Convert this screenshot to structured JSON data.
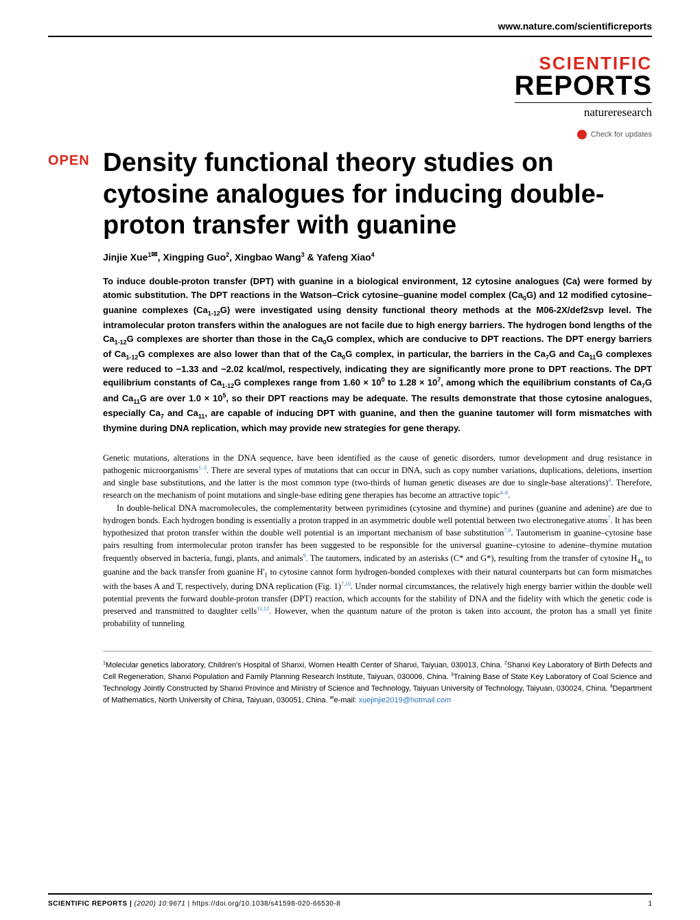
{
  "header": {
    "url": "www.nature.com/scientificreports",
    "logo_top": "SCIENTIFIC",
    "logo_bottom": "REPORTS",
    "logo_sub": "natureresearch",
    "check_updates": "Check for updates",
    "open_badge": "OPEN"
  },
  "colors": {
    "brand_red": "#d9281c",
    "link_blue": "#2a6fb5",
    "text": "#000000",
    "background": "#ffffff",
    "rule": "#000000"
  },
  "typography": {
    "title_fontsize_pt": 28,
    "authors_fontsize_pt": 10.5,
    "abstract_fontsize_pt": 10,
    "body_fontsize_pt": 9.5,
    "affil_fontsize_pt": 8.5,
    "title_family": "Arial",
    "body_family": "Georgia"
  },
  "title": "Density functional theory studies on cytosine analogues for inducing double-proton transfer with guanine",
  "authors_html": "Jinjie Xue<sup>1</sup><span class='envelope'>✉</span>, Xingping Guo<sup>2</sup>, Xingbao Wang<sup>3</sup> & Yafeng Xiao<sup>4</sup>",
  "abstract_html": "To induce double-proton transfer (DPT) with guanine in a biological environment, 12 cytosine analogues (Ca) were formed by atomic substitution. The DPT reactions in the Watson–Crick cytosine–guanine model complex (Ca<sub>0</sub>G) and 12 modified cytosine–guanine complexes (Ca<sub>1-12</sub>G) were investigated using density functional theory methods at the M06-2X/def2svp level. The intramolecular proton transfers within the analogues are not facile due to high energy barriers. The hydrogen bond lengths of the Ca<sub>1-12</sub>G complexes are shorter than those in the Ca<sub>0</sub>G complex, which are conducive to DPT reactions. The DPT energy barriers of Ca<sub>1-12</sub>G complexes are also lower than that of the Ca<sub>0</sub>G complex, in particular, the barriers in the Ca<sub>7</sub>G and Ca<sub>11</sub>G complexes were reduced to −1.33 and −2.02 kcal/mol, respectively, indicating they are significantly more prone to DPT reactions. The DPT equilibrium constants of Ca<sub>1-12</sub>G complexes range from 1.60 × 10<sup>0</sup> to 1.28 × 10<sup>7</sup>, among which the equilibrium constants of Ca<sub>7</sub>G and Ca<sub>11</sub>G are over 1.0 × 10<sup>5</sup>, so their DPT reactions may be adequate. The results demonstrate that those cytosine analogues, especially Ca<sub>7</sub> and Ca<sub>11</sub>, are capable of inducing DPT with guanine, and then the guanine tautomer will form mismatches with thymine during DNA replication, which may provide new strategies for gene therapy.",
  "body_paragraphs": [
    "Genetic mutations, alterations in the DNA sequence, have been identified as the cause of genetic disorders, tumor development and drug resistance in pathogenic microorganisms<sup>1–3</sup>. There are several types of mutations that can occur in DNA, such as copy number variations, duplications, deletions, insertion and single base substitutions, and the latter is the most common type (two-thirds of human genetic diseases are due to single-base alterations)<sup>4</sup>. Therefore, research on the mechanism of point mutations and single-base editing gene therapies has become an attractive topic<sup>4–6</sup>.",
    "In double-helical DNA macromolecules, the complementarity between pyrimidines (cytosine and thymine) and purines (guanine and adenine) are due to hydrogen bonds. Each hydrogen bonding is essentially a proton trapped in an asymmetric double well potential between two electronegative atoms<sup>7</sup>. It has been hypothesized that proton transfer within the double well potential is an important mechanism of base substitution<sup>7,8</sup>. Tautomerism in guanine–cytosine base pairs resulting from intermolecular proton transfer has been suggested to be responsible for the universal guanine–cytosine to adenine–thymine mutation frequently observed in bacteria, fungi, plants, and animals<sup>9</sup>. The tautomers, indicated by an asterisks (C* and G*), resulting from the transfer of cytosine H<sub>4a</sub> to guanine and the back transfer from guanine H'<sub>1</sub> to cytosine cannot form hydrogen-bonded complexes with their natural counterparts but can form mismatches with the bases A and T, respectively, during DNA replication (Fig. 1)<sup>7,10</sup>. Under normal circumstances, the relatively high energy barrier within the double well potential prevents the forward double-proton transfer (DPT) reaction, which accounts for the stability of DNA and the fidelity with which the genetic code is preserved and transmitted to daughter cells<sup>11,12</sup>. However, when the quantum nature of the proton is taken into account, the proton has a small yet finite probability of tunneling"
  ],
  "affiliations_html": "<sup>1</sup>Molecular genetics laboratory, Children's Hospital of Shanxi, Women Health Center of Shanxi, Taiyuan, 030013, China. <sup>2</sup>Shanxi Key Laboratory of Birth Defects and Cell Regeneration, Shanxi Population and Family Planning Research Institute, Taiyuan, 030006, China. <sup>3</sup>Training Base of State Key Laboratory of Coal Science and Technology Jointly Constructed by Shanxi Province and Ministry of Science and Technology, Taiyuan University of Technology, Taiyuan, 030024, China. <sup>4</sup>Department of Mathematics, North University of China, Taiyuan, 030051, China. <sup>✉</sup>e-mail: <span class='email'>xuejinjie2019@hotmail.com</span>",
  "footer": {
    "journal": "SCIENTIFIC REPORTS",
    "year_vol": "(2020) 10:9671",
    "doi": "https://doi.org/10.1038/s41598-020-66530-8",
    "page": "1"
  }
}
